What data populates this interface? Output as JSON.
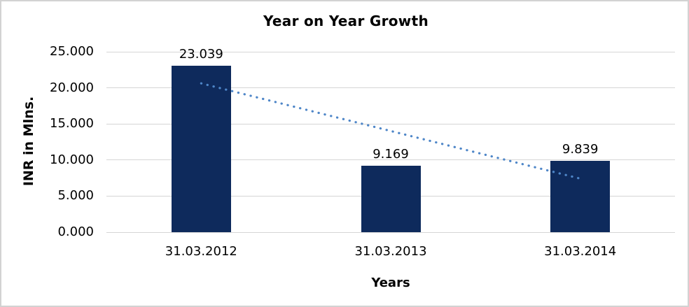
{
  "chart_data": {
    "type": "bar",
    "title": "Year on Year Growth",
    "xlabel": "Years",
    "ylabel": "INR in Mlns.",
    "categories": [
      "31.03.2012",
      "31.03.2013",
      "31.03.2014"
    ],
    "values": [
      23.039,
      9.169,
      9.839
    ],
    "data_labels": [
      "23.039",
      "9.169",
      "9.839"
    ],
    "ylim": [
      0,
      25
    ],
    "ytick_values": [
      0,
      5,
      10,
      15,
      20,
      25
    ],
    "ytick_labels": [
      "0.000",
      "5.000",
      "10.000",
      "15.000",
      "20.000",
      "25.000"
    ],
    "grid": "horizontal",
    "legend": "none",
    "bar_color": "#0e2a5c",
    "gridline_color": "#d5d5d5",
    "trendline": {
      "type": "linear",
      "style": "dotted",
      "color": "#4e86c8",
      "start_value": 20.62,
      "end_value": 7.42,
      "start_category_index": 0,
      "end_category_index": 2
    }
  }
}
